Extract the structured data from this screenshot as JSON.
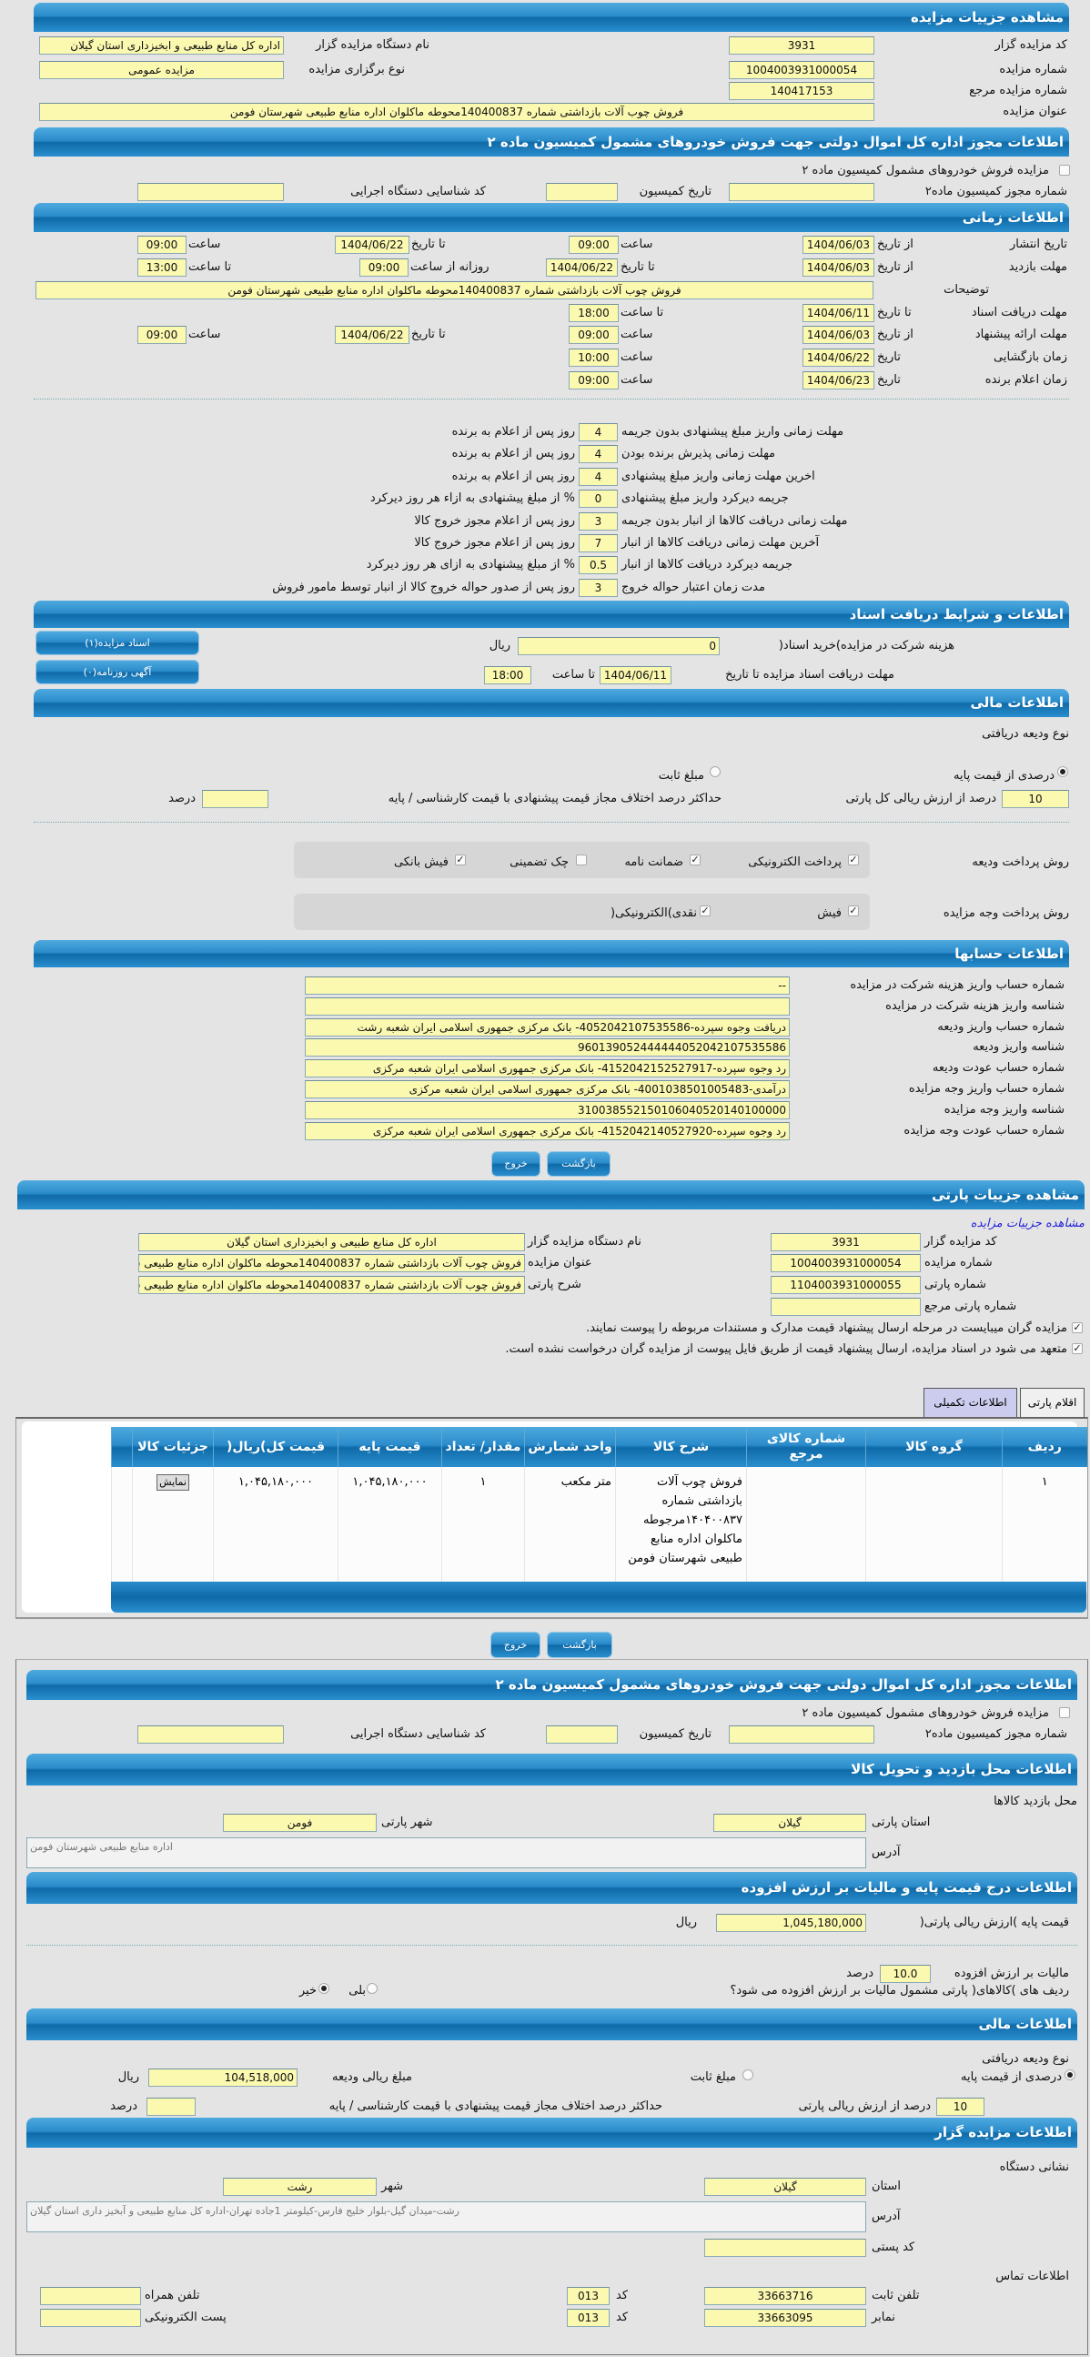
{
  "auction": {
    "title": "مشاهده جزییات مزایده",
    "code_label": "کد مزایده گزار",
    "code": "3931",
    "org_label": "نام دستگاه مزایده گزار",
    "org": "اداره کل منابع طبیعی و ابخیزداری استان گیلان",
    "number_label": "شماره مزایده",
    "number": "1004003931000054",
    "type_label": "نوع برگزاری مزایده",
    "type": "مزایده عمومی",
    "ref_label": "شماره مزایده مرجع",
    "ref": "140417153",
    "subject_label": "عنوان مزایده",
    "subject": "فروش چوب آلات بازداشتی شماره 140400837محوطه ماکلوان اداره منابع طبیعی شهرستان فومن"
  },
  "permit": {
    "title": "اطلاعات مجوز اداره کل اموال دولتی جهت فروش خودروهای مشمول کمیسیون ماده ۲",
    "checkbox_label": "مزایده فروش خودروهای مشمول کمیسیون ماده ۲",
    "checked": false,
    "permit_no_label": "شماره مجوز کمیسیون ماده۲",
    "permit_no": "",
    "date_label": "تاریخ کمیسیون",
    "date": "",
    "exec_code_label": "کد شناسایی دستگاه اجرایی",
    "exec_code": ""
  },
  "timing": {
    "title": "اطلاعات زمانی",
    "publish": {
      "label": "تاریخ انتشار",
      "from_label": "از تاریخ",
      "from": "1404/06/03",
      "time_label": "ساعت",
      "time": "09:00",
      "to_label": "تا تاریخ",
      "to": "1404/06/22",
      "to_time_label": "ساعت",
      "to_time": "09:00"
    },
    "visit": {
      "label": "مهلت بازدید",
      "from_label": "از تاریخ",
      "from": "1404/06/03",
      "to_label": "تا تاریخ",
      "to": "1404/06/22",
      "daily_label": "روزانه از ساعت",
      "daily_from": "09:00",
      "daily_to_label": "تا ساعت",
      "daily_to": "13:00"
    },
    "desc_label": "توضیحات",
    "desc": "فروش چوب آلات بازداشتی شماره 140400837محوطه ماکلوان اداره منابع طبیعی شهرستان فومن",
    "docs": {
      "label": "مهلت دریافت اسناد",
      "to_label": "تا تاریخ",
      "to": "1404/06/11",
      "time_label": "تا ساعت",
      "time": "18:00"
    },
    "offer": {
      "label": "مهلت ارائه پیشنهاد",
      "from_label": "از تاریخ",
      "from": "1404/06/03",
      "time_label": "ساعت",
      "time": "09:00",
      "to_label": "تا تاریخ",
      "to": "1404/06/22",
      "to_time_label": "ساعت",
      "to_time": "09:00"
    },
    "opening": {
      "label": "زمان بازگشایی",
      "date_label": "تاریخ",
      "date": "1404/06/22",
      "time_label": "ساعت",
      "time": "10:00"
    },
    "winner": {
      "label": "زمان اعلام برنده",
      "date_label": "تاریخ",
      "date": "1404/06/23",
      "time_label": "ساعت",
      "time": "09:00"
    }
  },
  "penalties": [
    {
      "label": "مهلت زمانی واریز مبلغ پیشنهادی بدون جریمه",
      "value": "4",
      "suffix": "روز پس از اعلام به برنده"
    },
    {
      "label": "مهلت زمانی پذیرش برنده بودن",
      "value": "4",
      "suffix": "روز پس از اعلام به برنده"
    },
    {
      "label": "اخرین مهلت زمانی واریز مبلغ پیشنهادی",
      "value": "4",
      "suffix": "روز پس از اعلام به برنده"
    },
    {
      "label": "جریمه دیرکرد واریز مبلغ پیشنهادی",
      "value": "0",
      "suffix": "% از مبلغ پیشنهادی به ازاء هر روز دیرکرد"
    },
    {
      "label": "مهلت زمانی دریافت کالاها از انبار بدون جریمه",
      "value": "3",
      "suffix": "روز پس از اعلام مجوز خروج کالا"
    },
    {
      "label": "آخرین مهلت زمانی دریافت کالاها از انبار",
      "value": "7",
      "suffix": "روز پس از اعلام مجوز خروج کالا"
    },
    {
      "label": "جریمه دیرکرد دریافت کالاها از انبار",
      "value": "0.5",
      "suffix": "% از مبلغ پیشنهادی به ازای هر روز دیرکرد"
    },
    {
      "label": "مدت زمان اعتبار حواله خروج",
      "value": "3",
      "suffix": "روز پس از صدور حواله خروج کالا از انبار توسط مامور فروش"
    }
  ],
  "documents": {
    "title": "اطلاعات و شرایط دریافت اسناد",
    "fee_label": "هزینه شرکت در مزایده)خرید اسناد(",
    "fee": "0",
    "currency": "ریال",
    "deadline_label": "مهلت دریافت اسناد مزایده تا تاریخ",
    "deadline_date": "1404/06/11",
    "time_label": "تا ساعت",
    "time": "18:00",
    "docs_button": "اسناد مزایده(۱)",
    "ad_button": "آگهی روزنامه(۰)"
  },
  "finance": {
    "title": "اطلاعات مالی",
    "deposit_type_label": "نوع ودیعه دریافتی",
    "opt_percent": "درصدی از قیمت پایه",
    "opt_fixed": "مبلغ ثابت",
    "selected": "percent",
    "percent": "10",
    "percent_label": "درصد از ارزش ریالی کل پارتی",
    "max_diff_label": "حداکثر درصد اختلاف مجاز قیمت پیشنهادی با قیمت کارشناسی / پایه",
    "max_diff": "",
    "percent_unit": "درصد",
    "deposit_method_label": "روش پرداخت ودیعه",
    "deposit_methods": [
      {
        "label": "پرداخت الکترونیکی",
        "checked": true
      },
      {
        "label": "ضمانت نامه",
        "checked": true
      },
      {
        "label": "چک تضمینی",
        "checked": false
      },
      {
        "label": "فیش بانکی",
        "checked": true
      }
    ],
    "payment_method_label": "روش پرداخت وجه مزایده",
    "payment_methods": [
      {
        "label": "فیش",
        "checked": true
      },
      {
        "label": "نقدی)الکترونیکی(",
        "checked": true
      }
    ]
  },
  "accounts": {
    "title": "اطلاعات حسابها",
    "rows": [
      {
        "label": "شماره حساب واریز هزینه شرکت در مزایده",
        "value": "--"
      },
      {
        "label": "شناسه واریز هزینه شرکت در مزایده",
        "value": ""
      },
      {
        "label": "شماره حساب واریز ودیعه",
        "value": "دریافت وجوه سپرده-4052042107535586- بانک مرکزی جمهوری اسلامی ایران شعبه رشت"
      },
      {
        "label": "شناسه واریز ودیعه",
        "value": "960139052444444052042107535586"
      },
      {
        "label": "شماره حساب عودت ودیعه",
        "value": "رد وجوه سپرده-4152042152527917- بانک مرکزی جمهوری اسلامی ایران شعبه مرکزی"
      },
      {
        "label": "شماره حساب واریز وجه مزایده",
        "value": "درآمدی-4001038501005483- بانک مرکزی جمهوری اسلامی ایران شعبه مرکزی"
      },
      {
        "label": "شناسه واریز وجه مزایده",
        "value": "310038552150106040520140100000"
      },
      {
        "label": "شماره حساب عودت وجه مزایده",
        "value": "رد وجوه سپرده-4152042140527920- بانک مرکزی جمهوری اسلامی ایران شعبه مرکزی"
      }
    ]
  },
  "actions": {
    "back": "بازگشت",
    "exit": "خروج"
  },
  "party": {
    "title": "مشاهده جزییات پارتی",
    "auction_link": "مشاهده جزییات مزایده",
    "code_label": "کد مزایده گزار",
    "code": "3931",
    "org_label": "نام دستگاه مزایده گزار",
    "org": "اداره کل منابع طبیعی و ابخیزداری استان گیلان",
    "number_label": "شماره مزایده",
    "number": "1004003931000054",
    "subject_label": "عنوان مزایده",
    "subject": "فروش چوب آلات بازداشتی شماره 140400837محوطه ماکلوان اداره منابع طبیعی شهرستان فومن",
    "party_no_label": "شماره پارتی",
    "party_no": "1104003931000055",
    "party_desc_label": "شرح پارتی",
    "party_desc": "فروش چوب آلات بازداشتی شماره 140400837محوطه ماکلوان اداره منابع طبیعی شهرستان فومن",
    "party_ref_label": "شماره پارتی مرجع",
    "party_ref": "",
    "check1": "مزایده گران میبایست در مرحله ارسال پیشنهاد قیمت مدارک و مستندات مربوطه را پیوست نمایند.",
    "check2": "متعهد می شود در اسناد مزایده، ارسال پیشنهاد قیمت از طریق فایل پیوست از مزایده گران درخواست نشده است."
  },
  "tabs": [
    {
      "label": "اقلام پارتی",
      "active": false
    },
    {
      "label": "اطلاعات تکمیلی",
      "active": true
    }
  ],
  "items_table": {
    "columns": [
      "ردیف",
      "گروه کالا",
      "شماره کالای مرجع",
      "شرح کالا",
      "واحد شمارش",
      "مقدار/ تعداد",
      "قیمت پایه",
      "قیمت کل)ریال(",
      "جزئیات کالا"
    ],
    "rows": [
      {
        "row": "۱",
        "group": "",
        "ref": "",
        "desc": "فروش چوب آلات بازداشتی شماره ۱۴۰۴۰۰۸۳۷مرجوطه ماکلوان اداره منابع طبیعی شهرستان فومن",
        "unit": "متر مکعب",
        "qty": "۱",
        "base_price": "۱,۰۴۵,۱۸۰,۰۰۰",
        "total": "۱,۰۴۵,۱۸۰,۰۰۰",
        "details_button": "نمایش"
      }
    ]
  },
  "location": {
    "title": "اطلاعات محل بازدید و تحویل کالا",
    "label": "محل بازدید کالاها",
    "province_label": "استان پارتی",
    "province": "گیلان",
    "city_label": "شهر پارتی",
    "city": "فومن",
    "address_label": "آدرس",
    "address": "اداره منابع طبیعی شهرستان فومن"
  },
  "pricing": {
    "title": "اطلاعات درج قیمت پایه و مالیات بر ارزش افزوده",
    "base_label": "قیمت پایه )ارزش ریالی پارتی(",
    "base": "1,045,180,000",
    "currency": "ریال",
    "vat_label": "مالیات بر ارزش افزوده",
    "vat": "10.0",
    "vat_unit": "درصد",
    "vat_question": "ردیف های )کالاهای( پارتی مشمول مالیات بر ارزش افزوده می شود؟",
    "yes": "بلی",
    "no": "خیر",
    "selected": "no"
  },
  "finance2": {
    "title": "اطلاعات مالی",
    "deposit_type_label": "نوع ودیعه دریافتی",
    "opt_percent": "درصدی از قیمت پایه",
    "opt_fixed": "مبلغ ثابت",
    "selected": "percent",
    "amount_label": "مبلغ ریالی ودیعه",
    "amount": "104,518,000",
    "currency": "ریال",
    "percent": "10",
    "percent_label": "درصد از ارزش ریالی پارتی",
    "max_diff_label": "حداکثر درصد اختلاف مجاز قیمت پیشنهادی با قیمت کارشناسی / پایه",
    "max_diff": "",
    "percent_unit": "درصد"
  },
  "auctioneer": {
    "title": "اطلاعات مزایده گزار",
    "address_section": "نشانی دستگاه",
    "province_label": "استان",
    "province": "گیلان",
    "city_label": "شهر",
    "city": "رشت",
    "address_label": "آدرس",
    "address": "رشت-میدان گیل-بلوار خلیج فارس-کیلومتر 1جاده تهران-اداره کل منابع طبیعی و آبخیز داری استان گیلان",
    "postal_label": "کد پستی",
    "postal": "",
    "contact_section": "اطلاعات تماس",
    "phone_label": "تلفن ثابت",
    "phone": "33663716",
    "code_label": "کد",
    "phone_code": "013",
    "mobile_label": "تلفن همراه",
    "mobile": "",
    "fax_label": "نمابر",
    "fax": "33663095",
    "fax_code": "013",
    "email_label": "پست الکترونیکی",
    "email": ""
  },
  "colors": {
    "header_blue": "#2b8ccb",
    "field_yellow": "#fbf8b0",
    "page_gray": "#e4e4e4",
    "active_tab": "#ccccee"
  }
}
